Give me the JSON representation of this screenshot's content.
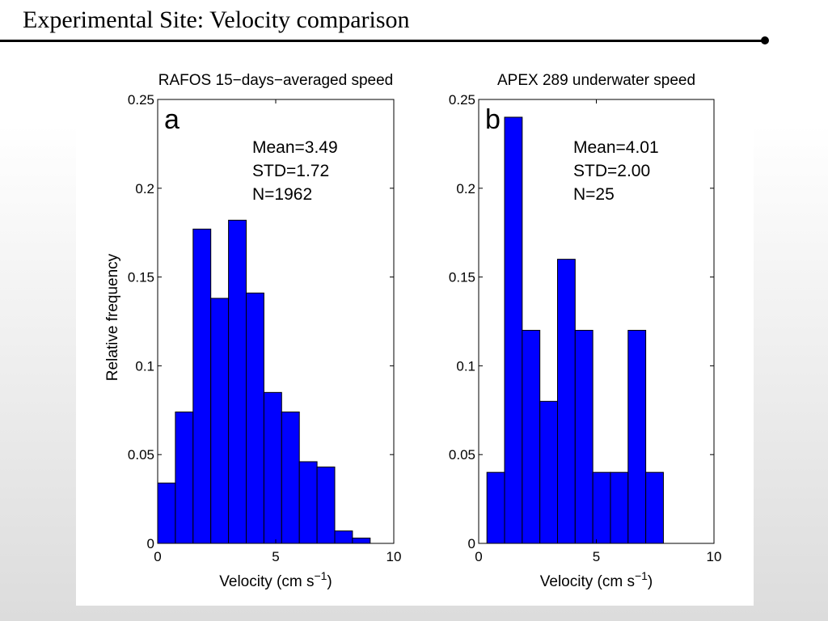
{
  "slide": {
    "title": "Experimental Site: Velocity comparison"
  },
  "colors": {
    "bar_fill": "#0000ff",
    "bar_edge": "#000000",
    "axes": "#000000",
    "background": "#ffffff"
  },
  "chart_data": [
    {
      "type": "bar",
      "panel": "a",
      "title": "RAFOS 15−days−averaged speed",
      "xlabel": "Velocity (cm s",
      "xlabel_sup": "−1",
      "xlabel_end": ")",
      "ylabel": "Relative frequency",
      "xlim": [
        0,
        10
      ],
      "ylim": [
        0,
        0.25
      ],
      "xticks": [
        0,
        5,
        10
      ],
      "xtick_labels": [
        "0",
        "5",
        "10"
      ],
      "yticks": [
        0,
        0.05,
        0.1,
        0.15,
        0.2,
        0.25
      ],
      "ytick_labels": [
        "0",
        "0.05",
        "0.1",
        "0.15",
        "0.2",
        "0.25"
      ],
      "bin_width": 0.75,
      "x": [
        0.0,
        0.75,
        1.5,
        2.25,
        3.0,
        3.75,
        4.5,
        5.25,
        6.0,
        6.75,
        7.5,
        8.25
      ],
      "values": [
        0.034,
        0.074,
        0.177,
        0.138,
        0.182,
        0.141,
        0.085,
        0.074,
        0.046,
        0.043,
        0.007,
        0.003
      ],
      "annotations": [
        "Mean=3.49",
        "STD=1.72",
        "N=1962"
      ]
    },
    {
      "type": "bar",
      "panel": "b",
      "title": "APEX 289 underwater speed",
      "xlabel": "Velocity (cm s",
      "xlabel_sup": "−1",
      "xlabel_end": ")",
      "ylabel": "",
      "xlim": [
        0,
        10
      ],
      "ylim": [
        0,
        0.25
      ],
      "xticks": [
        0,
        5,
        10
      ],
      "xtick_labels": [
        "0",
        "5",
        "10"
      ],
      "yticks": [
        0,
        0.05,
        0.1,
        0.15,
        0.2,
        0.25
      ],
      "ytick_labels": [
        "0",
        "0.05",
        "0.1",
        "0.15",
        "0.2",
        "0.25"
      ],
      "bin_width": 0.75,
      "x": [
        0.35,
        1.1,
        1.85,
        2.6,
        3.35,
        4.1,
        4.85,
        5.6,
        6.35,
        7.1
      ],
      "values": [
        0.04,
        0.24,
        0.12,
        0.08,
        0.16,
        0.12,
        0.04,
        0.04,
        0.12,
        0.04
      ],
      "annotations": [
        "Mean=4.01",
        "STD=2.00",
        "N=25"
      ]
    }
  ]
}
